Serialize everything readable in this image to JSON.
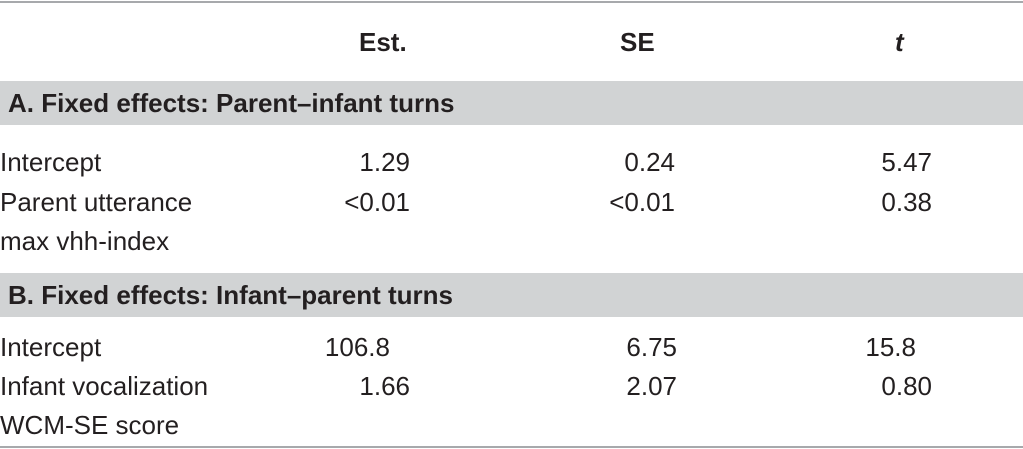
{
  "table": {
    "headers": {
      "est": "Est.",
      "se": "SE",
      "t": "t"
    },
    "sections": [
      {
        "title": "A. Fixed effects: Parent–infant turns",
        "rows": [
          {
            "label_line1": "Intercept",
            "label_line2": "",
            "est": "1.29",
            "se": "0.24",
            "t": "5.47"
          },
          {
            "label_line1": "Parent utterance",
            "label_line2": "max vhh-index",
            "est": "<0.01",
            "se": "<0.01",
            "t": "0.38"
          }
        ]
      },
      {
        "title": "B. Fixed effects: Infant–parent turns",
        "rows": [
          {
            "label_line1": "Intercept",
            "label_line2": "",
            "est": "106.8",
            "se": "6.75",
            "t": "15.8"
          },
          {
            "label_line1": "Infant vocalization",
            "label_line2": "WCM-SE score",
            "est": "1.66",
            "se": "2.07",
            "t": "0.80"
          }
        ]
      }
    ]
  },
  "colors": {
    "section_band": "#d1d3d4",
    "rule": "#a7a9ac",
    "text": "#231f20"
  }
}
